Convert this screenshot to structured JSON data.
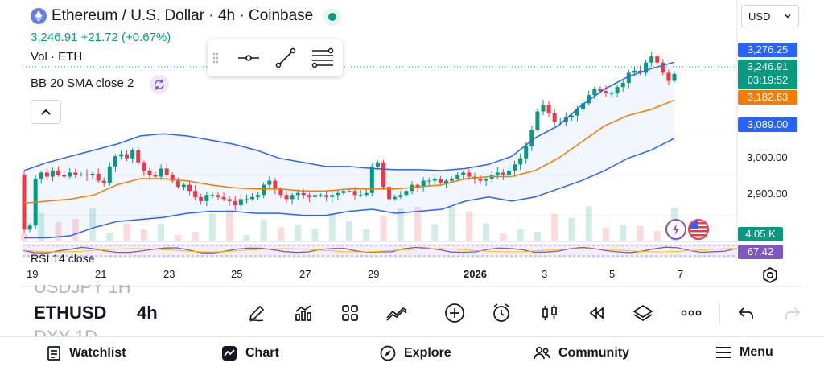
{
  "header": {
    "symbol_title": "Ethereum / U.S. Dollar · 4h · Coinbase",
    "price_line": "3,246.91 +21.72 (+0.67%)",
    "volume_label": "Vol · ETH",
    "bb_label": "BB 20 SMA close 2",
    "currency": "USD"
  },
  "price_axis": {
    "labels": [
      "3,000.00",
      "2,900.00"
    ],
    "tags": {
      "bb_upper": {
        "value": "3,276.25",
        "color": "#2962ff"
      },
      "last": {
        "value": "3,246.91",
        "sub": "03:19:52",
        "color": "#089981"
      },
      "sma": {
        "value": "3,182.63",
        "color": "#f57c00"
      },
      "bb_lower": {
        "value": "3,089.00",
        "color": "#2962ff"
      },
      "volume": {
        "value": "4.05 K",
        "color": "#089981"
      },
      "rsi": {
        "value": "67.42",
        "color": "#7e57c2"
      }
    }
  },
  "rsi": {
    "label": "RSI 14 close"
  },
  "date_axis": {
    "labels": [
      {
        "text": "19"
      },
      {
        "text": "21"
      },
      {
        "text": "23"
      },
      {
        "text": "25"
      },
      {
        "text": "27"
      },
      {
        "text": "29"
      },
      {
        "text": "2026",
        "bold": true
      },
      {
        "text": "3"
      },
      {
        "text": "5"
      },
      {
        "text": "7"
      }
    ]
  },
  "picker": {
    "above": "USDJPY 1H",
    "selected_symbol": "ETHUSD",
    "selected_interval": "4h",
    "below": "DXY 1D"
  },
  "toolbar_icons": [
    "pencil-icon",
    "indicators-icon",
    "layout-grid-icon",
    "compare-icon",
    "add-icon",
    "alert-clock-icon",
    "candles-icon",
    "replay-icon",
    "layers-icon",
    "more-icon",
    "undo-icon",
    "redo-icon"
  ],
  "nav": {
    "watchlist": "Watchlist",
    "chart": "Chart",
    "explore": "Explore",
    "community": "Community",
    "menu": "Menu"
  },
  "colors": {
    "up": "#089981",
    "down": "#f23645",
    "bb_band": "#2962ff",
    "sma": "#f57c00",
    "rsi": "#7e57c2"
  },
  "chart_data": {
    "type": "candlestick",
    "interval": "4h",
    "x_axis_dates": [
      "19",
      "21",
      "23",
      "25",
      "27",
      "29",
      "2026",
      "3",
      "5",
      "7"
    ],
    "ylim": [
      2840,
      3310
    ],
    "closes": [
      2865,
      2875,
      2990,
      3005,
      2995,
      3010,
      3000,
      2995,
      3005,
      3000,
      3000,
      2998,
      3002,
      2985,
      2980,
      3020,
      3045,
      3050,
      3040,
      3060,
      3030,
      3010,
      3000,
      2995,
      3015,
      3000,
      2985,
      2970,
      2975,
      2960,
      2945,
      2935,
      2950,
      2950,
      2945,
      2940,
      2935,
      2925,
      2940,
      2940,
      2945,
      2950,
      2975,
      2985,
      2965,
      2950,
      2940,
      2950,
      2955,
      2950,
      2945,
      2950,
      2950,
      2945,
      2950,
      2955,
      2960,
      2960,
      2950,
      2950,
      2955,
      3020,
      3030,
      2970,
      2940,
      2945,
      2950,
      2960,
      2975,
      2970,
      2985,
      2985,
      2990,
      2980,
      2985,
      2990,
      3000,
      3005,
      2995,
      2990,
      2985,
      2990,
      3000,
      3005,
      3000,
      3010,
      3025,
      3040,
      3070,
      3110,
      3155,
      3170,
      3150,
      3130,
      3130,
      3140,
      3145,
      3160,
      3175,
      3195,
      3210,
      3205,
      3200,
      3200,
      3215,
      3225,
      3250,
      3255,
      3250,
      3275,
      3290,
      3275,
      3250,
      3230,
      3247
    ],
    "bb_upper": [
      3010,
      3030,
      3045,
      3060,
      3075,
      3095,
      3100,
      3095,
      3085,
      3075,
      3060,
      3040,
      3030,
      3020,
      3020,
      3015,
      3012,
      3012,
      3010,
      3015,
      3025,
      3045,
      3090,
      3120,
      3170,
      3210,
      3240,
      3260,
      3276
    ],
    "bb_lower": [
      2845,
      2845,
      2850,
      2870,
      2885,
      2890,
      2895,
      2905,
      2910,
      2910,
      2905,
      2905,
      2900,
      2900,
      2910,
      2915,
      2905,
      2910,
      2915,
      2935,
      2945,
      2935,
      2945,
      2965,
      2985,
      3010,
      3040,
      3060,
      3089
    ],
    "sma": [
      2930,
      2935,
      2940,
      2950,
      2975,
      2990,
      2990,
      2985,
      2975,
      2968,
      2965,
      2965,
      2960,
      2960,
      2965,
      2965,
      2965,
      2970,
      2975,
      2990,
      2995,
      2995,
      3010,
      3040,
      3080,
      3120,
      3145,
      3160,
      3183
    ],
    "last_price": 3246.91
  }
}
